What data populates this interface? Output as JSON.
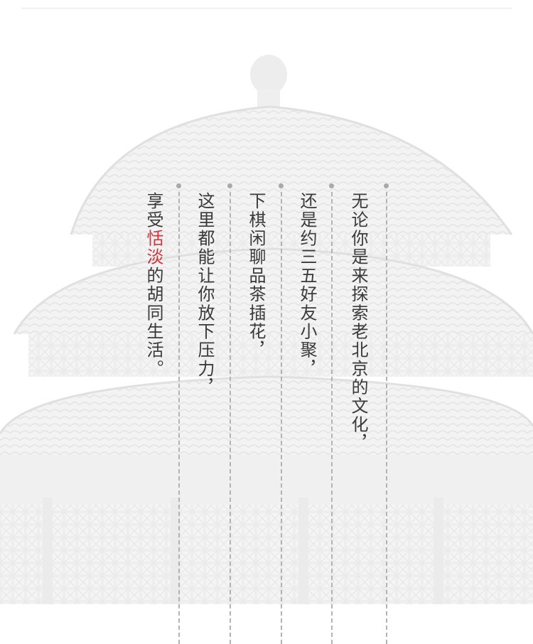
{
  "columns": [
    "无论你是来探索老北京的文化，",
    "还是约三五好友小聚，",
    "下棋闲聊品茶插花，",
    "这里都能让你放下压力，"
  ],
  "last_column": {
    "before": "享受",
    "highlight": "恬淡",
    "after": "的胡同生活。"
  },
  "colors": {
    "text": "#3a3a3a",
    "highlight": "#d7323b",
    "divider": "#b3b3b3",
    "background_illustration": "#f1f1f1"
  }
}
